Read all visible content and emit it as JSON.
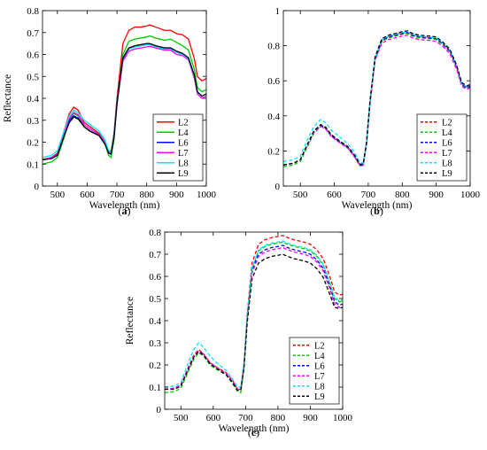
{
  "chart_data": [
    {
      "type": "line",
      "panel_label": "(a)",
      "xlabel": "Wavelength (nm)",
      "ylabel": "Reflectance",
      "xlim": [
        450,
        1000
      ],
      "ylim": [
        0,
        0.8
      ],
      "xticks": [
        500,
        600,
        700,
        800,
        900,
        1000
      ],
      "xtick_labels": [
        "500",
        "600",
        "700",
        "800",
        "900",
        "1000"
      ],
      "yticks": [
        0,
        0.1,
        0.2,
        0.3,
        0.4,
        0.5,
        0.6,
        0.7,
        0.8
      ],
      "ytick_labels": [
        "0",
        "0.1",
        "0.2",
        "0.3",
        "0.4",
        "0.5",
        "0.6",
        "0.7",
        "0.8"
      ],
      "legend_position": "bottom-right",
      "line_style": "solid",
      "x": [
        450,
        480,
        500,
        520,
        540,
        555,
        570,
        590,
        610,
        640,
        660,
        672,
        680,
        690,
        700,
        720,
        740,
        760,
        780,
        800,
        810,
        830,
        860,
        880,
        900,
        920,
        940,
        960,
        970,
        985,
        1000
      ],
      "series": [
        {
          "name": "L2",
          "color": "#ff0000",
          "values": [
            0.12,
            0.13,
            0.15,
            0.24,
            0.33,
            0.36,
            0.345,
            0.29,
            0.27,
            0.24,
            0.2,
            0.16,
            0.16,
            0.24,
            0.4,
            0.65,
            0.71,
            0.725,
            0.725,
            0.73,
            0.735,
            0.725,
            0.71,
            0.71,
            0.695,
            0.69,
            0.67,
            0.58,
            0.5,
            0.48,
            0.49
          ]
        },
        {
          "name": "L4",
          "color": "#00cc00",
          "values": [
            0.1,
            0.11,
            0.13,
            0.21,
            0.3,
            0.33,
            0.32,
            0.27,
            0.25,
            0.23,
            0.19,
            0.14,
            0.13,
            0.21,
            0.37,
            0.6,
            0.66,
            0.67,
            0.675,
            0.68,
            0.685,
            0.675,
            0.665,
            0.67,
            0.655,
            0.64,
            0.62,
            0.53,
            0.45,
            0.43,
            0.44
          ]
        },
        {
          "name": "L6",
          "color": "#0000ff",
          "values": [
            0.12,
            0.13,
            0.14,
            0.22,
            0.3,
            0.32,
            0.31,
            0.27,
            0.25,
            0.23,
            0.2,
            0.15,
            0.15,
            0.23,
            0.38,
            0.58,
            0.625,
            0.635,
            0.64,
            0.645,
            0.648,
            0.64,
            0.63,
            0.625,
            0.61,
            0.6,
            0.58,
            0.5,
            0.43,
            0.41,
            0.42
          ]
        },
        {
          "name": "L7",
          "color": "#ff00ff",
          "values": [
            0.12,
            0.13,
            0.145,
            0.23,
            0.31,
            0.335,
            0.325,
            0.28,
            0.26,
            0.235,
            0.2,
            0.155,
            0.15,
            0.22,
            0.37,
            0.57,
            0.615,
            0.625,
            0.63,
            0.635,
            0.637,
            0.63,
            0.62,
            0.62,
            0.6,
            0.595,
            0.575,
            0.49,
            0.42,
            0.4,
            0.41
          ]
        },
        {
          "name": "L8",
          "color": "#00e5ff",
          "values": [
            0.13,
            0.14,
            0.16,
            0.24,
            0.32,
            0.345,
            0.335,
            0.3,
            0.28,
            0.25,
            0.21,
            0.16,
            0.155,
            0.23,
            0.38,
            0.585,
            0.625,
            0.635,
            0.64,
            0.645,
            0.645,
            0.635,
            0.625,
            0.625,
            0.61,
            0.6,
            0.58,
            0.5,
            0.43,
            0.41,
            0.42
          ]
        },
        {
          "name": "L9",
          "color": "#000000",
          "values": [
            0.12,
            0.125,
            0.14,
            0.22,
            0.29,
            0.315,
            0.305,
            0.27,
            0.25,
            0.23,
            0.19,
            0.15,
            0.145,
            0.22,
            0.375,
            0.585,
            0.63,
            0.64,
            0.645,
            0.65,
            0.65,
            0.64,
            0.63,
            0.63,
            0.615,
            0.605,
            0.585,
            0.505,
            0.43,
            0.41,
            0.42
          ]
        }
      ]
    },
    {
      "type": "line",
      "panel_label": "(b)",
      "xlabel": "Wavelength (nm)",
      "ylabel": "",
      "xlim": [
        450,
        1000
      ],
      "ylim": [
        0,
        1
      ],
      "xticks": [
        500,
        600,
        700,
        800,
        900,
        1000
      ],
      "xtick_labels": [
        "500",
        "600",
        "700",
        "800",
        "900",
        "1000"
      ],
      "yticks": [
        0,
        0.2,
        0.4,
        0.6,
        0.8,
        1
      ],
      "ytick_labels": [
        "0",
        "0.2",
        "0.4",
        "0.6",
        "0.8",
        "1"
      ],
      "legend_position": "bottom-right",
      "line_style": "dashed",
      "x": [
        450,
        480,
        500,
        520,
        540,
        560,
        575,
        590,
        610,
        640,
        660,
        675,
        685,
        695,
        705,
        720,
        740,
        760,
        780,
        800,
        815,
        830,
        850,
        880,
        900,
        920,
        940,
        960,
        975,
        990,
        1000
      ],
      "series": [
        {
          "name": "L2",
          "color": "#ff0000",
          "values": [
            0.12,
            0.13,
            0.15,
            0.23,
            0.31,
            0.35,
            0.33,
            0.29,
            0.26,
            0.22,
            0.17,
            0.12,
            0.12,
            0.25,
            0.48,
            0.73,
            0.83,
            0.85,
            0.86,
            0.87,
            0.875,
            0.86,
            0.85,
            0.845,
            0.84,
            0.81,
            0.77,
            0.68,
            0.58,
            0.56,
            0.57
          ]
        },
        {
          "name": "L4",
          "color": "#00cc00",
          "values": [
            0.11,
            0.12,
            0.14,
            0.22,
            0.3,
            0.34,
            0.325,
            0.285,
            0.255,
            0.215,
            0.165,
            0.115,
            0.115,
            0.24,
            0.47,
            0.72,
            0.825,
            0.845,
            0.855,
            0.865,
            0.87,
            0.855,
            0.845,
            0.84,
            0.835,
            0.805,
            0.765,
            0.675,
            0.575,
            0.555,
            0.565
          ]
        },
        {
          "name": "L6",
          "color": "#0000ff",
          "values": [
            0.12,
            0.13,
            0.15,
            0.23,
            0.31,
            0.345,
            0.33,
            0.29,
            0.26,
            0.22,
            0.17,
            0.12,
            0.12,
            0.245,
            0.475,
            0.725,
            0.83,
            0.85,
            0.86,
            0.87,
            0.875,
            0.86,
            0.85,
            0.845,
            0.84,
            0.81,
            0.77,
            0.68,
            0.58,
            0.56,
            0.57
          ]
        },
        {
          "name": "L7",
          "color": "#ff00ff",
          "values": [
            0.12,
            0.13,
            0.15,
            0.23,
            0.305,
            0.34,
            0.325,
            0.285,
            0.255,
            0.215,
            0.165,
            0.12,
            0.12,
            0.24,
            0.465,
            0.715,
            0.815,
            0.835,
            0.845,
            0.855,
            0.86,
            0.845,
            0.835,
            0.83,
            0.825,
            0.795,
            0.755,
            0.665,
            0.57,
            0.55,
            0.56
          ]
        },
        {
          "name": "L8",
          "color": "#00e5ff",
          "values": [
            0.14,
            0.15,
            0.17,
            0.26,
            0.34,
            0.38,
            0.36,
            0.32,
            0.29,
            0.24,
            0.19,
            0.135,
            0.13,
            0.25,
            0.48,
            0.73,
            0.835,
            0.855,
            0.865,
            0.875,
            0.88,
            0.865,
            0.855,
            0.85,
            0.845,
            0.815,
            0.775,
            0.685,
            0.585,
            0.565,
            0.575
          ]
        },
        {
          "name": "L9",
          "color": "#000000",
          "values": [
            0.12,
            0.13,
            0.15,
            0.235,
            0.315,
            0.35,
            0.335,
            0.295,
            0.265,
            0.225,
            0.175,
            0.125,
            0.125,
            0.25,
            0.485,
            0.735,
            0.84,
            0.86,
            0.87,
            0.88,
            0.885,
            0.87,
            0.86,
            0.855,
            0.85,
            0.82,
            0.78,
            0.69,
            0.59,
            0.57,
            0.58
          ]
        }
      ]
    },
    {
      "type": "line",
      "panel_label": "(c)",
      "xlabel": "Wavelength (nm)",
      "ylabel": "Reflectance",
      "xlim": [
        450,
        1000
      ],
      "ylim": [
        0,
        0.8
      ],
      "xticks": [
        500,
        600,
        700,
        800,
        900,
        1000
      ],
      "xtick_labels": [
        "500",
        "600",
        "700",
        "800",
        "900",
        "1000"
      ],
      "yticks": [
        0,
        0.1,
        0.2,
        0.3,
        0.4,
        0.5,
        0.6,
        0.7,
        0.8
      ],
      "ytick_labels": [
        "0",
        "0.1",
        "0.2",
        "0.3",
        "0.4",
        "0.5",
        "0.6",
        "0.7",
        "0.8"
      ],
      "legend_position": "bottom-right",
      "line_style": "dashed",
      "x": [
        450,
        480,
        500,
        520,
        540,
        555,
        570,
        590,
        610,
        640,
        660,
        675,
        685,
        695,
        705,
        720,
        740,
        760,
        780,
        800,
        815,
        830,
        850,
        880,
        900,
        920,
        940,
        960,
        975,
        990,
        1000
      ],
      "series": [
        {
          "name": "L2",
          "color": "#ff0000",
          "values": [
            0.09,
            0.095,
            0.11,
            0.18,
            0.245,
            0.27,
            0.25,
            0.21,
            0.19,
            0.165,
            0.13,
            0.09,
            0.09,
            0.2,
            0.43,
            0.66,
            0.745,
            0.765,
            0.775,
            0.78,
            0.785,
            0.775,
            0.765,
            0.755,
            0.745,
            0.72,
            0.68,
            0.6,
            0.53,
            0.515,
            0.52
          ]
        },
        {
          "name": "L4",
          "color": "#00cc00",
          "values": [
            0.075,
            0.08,
            0.095,
            0.16,
            0.225,
            0.255,
            0.24,
            0.2,
            0.18,
            0.155,
            0.115,
            0.08,
            0.075,
            0.185,
            0.41,
            0.635,
            0.715,
            0.735,
            0.745,
            0.75,
            0.755,
            0.745,
            0.735,
            0.725,
            0.715,
            0.69,
            0.65,
            0.57,
            0.5,
            0.485,
            0.49
          ]
        },
        {
          "name": "L6",
          "color": "#0000ff",
          "values": [
            0.09,
            0.095,
            0.11,
            0.175,
            0.24,
            0.265,
            0.25,
            0.21,
            0.19,
            0.16,
            0.125,
            0.09,
            0.09,
            0.195,
            0.41,
            0.625,
            0.7,
            0.72,
            0.73,
            0.735,
            0.74,
            0.73,
            0.72,
            0.71,
            0.7,
            0.675,
            0.635,
            0.555,
            0.485,
            0.47,
            0.475
          ]
        },
        {
          "name": "L7",
          "color": "#ff00ff",
          "values": [
            0.09,
            0.095,
            0.11,
            0.175,
            0.24,
            0.265,
            0.25,
            0.21,
            0.19,
            0.16,
            0.125,
            0.09,
            0.09,
            0.19,
            0.405,
            0.615,
            0.69,
            0.71,
            0.72,
            0.725,
            0.73,
            0.72,
            0.71,
            0.7,
            0.69,
            0.665,
            0.625,
            0.545,
            0.475,
            0.46,
            0.465
          ]
        },
        {
          "name": "L8",
          "color": "#00e5ff",
          "values": [
            0.1,
            0.105,
            0.12,
            0.2,
            0.27,
            0.3,
            0.28,
            0.24,
            0.21,
            0.175,
            0.135,
            0.1,
            0.1,
            0.21,
            0.43,
            0.64,
            0.72,
            0.74,
            0.75,
            0.755,
            0.76,
            0.75,
            0.74,
            0.73,
            0.72,
            0.695,
            0.655,
            0.575,
            0.505,
            0.49,
            0.495
          ]
        },
        {
          "name": "L9",
          "color": "#000000",
          "values": [
            0.09,
            0.09,
            0.105,
            0.17,
            0.235,
            0.26,
            0.245,
            0.205,
            0.185,
            0.155,
            0.12,
            0.085,
            0.085,
            0.185,
            0.39,
            0.59,
            0.66,
            0.68,
            0.69,
            0.695,
            0.7,
            0.69,
            0.68,
            0.67,
            0.66,
            0.635,
            0.595,
            0.52,
            0.46,
            0.455,
            0.46
          ]
        }
      ]
    }
  ]
}
